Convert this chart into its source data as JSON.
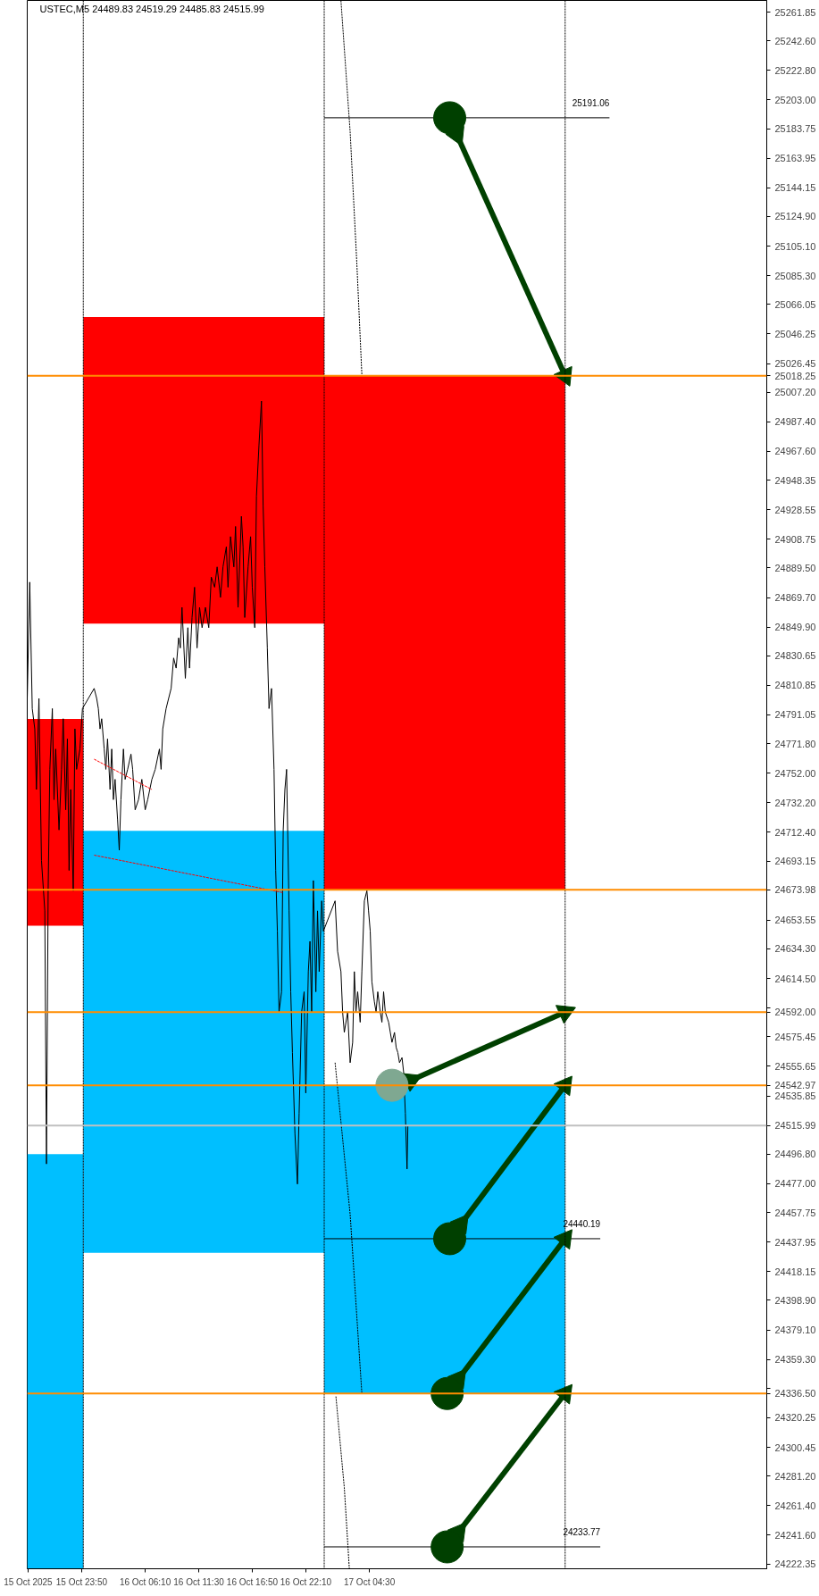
{
  "chart_data": {
    "type": "line",
    "title": "USTEC,M5 24489.83 24519.29 24485.83 24515.99",
    "xlim": [
      "2025-10-15T18:25",
      "2025-10-18T20:05"
    ],
    "ylim": [
      24219.1,
      25269.66
    ],
    "xticks": [
      {
        "value": "2025-10-15T18:30",
        "label": "15 Oct 2025"
      },
      {
        "value": "2025-10-15T23:50",
        "label": "15 Oct 23:50"
      },
      {
        "value": "2025-10-16T06:10",
        "label": "16 Oct 06:10"
      },
      {
        "value": "2025-10-16T11:30",
        "label": "16 Oct 11:30"
      },
      {
        "value": "2025-10-16T16:50",
        "label": "16 Oct 16:50"
      },
      {
        "value": "2025-10-16T22:10",
        "label": "16 Oct 22:10"
      },
      {
        "value": "2025-10-17T04:30",
        "label": "17 Oct 04:30"
      }
    ],
    "yticks": [
      25261.85,
      {
        "value": 25242.6,
        "label": "25242.60"
      },
      {
        "value": 25222.8,
        "label": "25222.80"
      },
      {
        "value": 25203,
        "label": "25203.00"
      },
      25183.75,
      25163.95,
      25144.15,
      {
        "value": 25124.9,
        "label": "25124.90"
      },
      {
        "value": 25105.1,
        "label": "25105.10"
      },
      {
        "value": 25085.3,
        "label": "25085.30"
      },
      25066.05,
      25046.25,
      25026.45,
      {
        "value": 25007.2,
        "label": "25007.20"
      },
      {
        "value": 24987.4,
        "label": "24987.40"
      },
      {
        "value": 24967.6,
        "label": "24967.60"
      },
      24948.35,
      24928.55,
      24908.75,
      {
        "value": 24889.5,
        "label": "24889.50"
      },
      {
        "value": 24869.7,
        "label": "24869.70"
      },
      {
        "value": 24849.9,
        "label": "24849.90"
      },
      24830.65,
      24810.85,
      24791.05,
      {
        "value": 24771.8,
        "label": "24771.80"
      },
      {
        "value": 24752,
        "label": "24752.00"
      },
      {
        "value": 24732.2,
        "label": "24732.20"
      },
      {
        "value": 24712.4,
        "label": "24712.40"
      },
      24693.15,
      24653.55,
      {
        "value": 24634.3,
        "label": "24634.30"
      },
      {
        "value": 24614.5,
        "label": "24614.50"
      },
      {
        "value": 24594.7,
        "label": null
      },
      24575.45,
      24555.65,
      24535.85,
      {
        "value": 24496.8,
        "label": "24496.80"
      },
      {
        "value": 24477,
        "label": "24477.00"
      },
      24457.75,
      24437.95,
      24418.15,
      {
        "value": 24398.9,
        "label": "24398.90"
      },
      {
        "value": 24379.1,
        "label": "24379.10"
      },
      {
        "value": 24359.3,
        "label": "24359.30"
      },
      {
        "value": 24340.05,
        "label": null
      },
      24320.25,
      24300.45,
      {
        "value": 24281.2,
        "label": "24281.20"
      },
      {
        "value": 24261.4,
        "label": "24261.40"
      },
      {
        "value": 24241.6,
        "label": "24241.60"
      },
      24222.35
    ],
    "series": [
      {
        "type": "bar",
        "color": "#ff0000",
        "x": [
          "2025-10-15T21:10",
          "2025-10-16T12:00",
          "2025-10-17T12:00"
        ],
        "base": [
          24649.8,
          24852.2,
          24674.0
        ],
        "values": [
          138.6,
          205.3,
          344.3
        ]
      },
      {
        "type": "bar",
        "color": "#00bfff",
        "x": [
          "2025-10-15T21:10",
          "2025-10-16T12:00",
          "2025-10-17T12:00"
        ],
        "base": [
          24219.1,
          24430.7,
          24336.5
        ],
        "values": [
          277.8,
          282.7,
          206.5
        ]
      },
      {
        "color": "#000000",
        "x": [
          "2025-10-15T18:25",
          "2025-10-15T18:40",
          "2025-10-15T18:55",
          "2025-10-15T19:10",
          "2025-10-15T19:20",
          "2025-10-15T19:35",
          "2025-10-15T19:50",
          "2025-10-15T20:10",
          "2025-10-15T20:20",
          "2025-10-15T20:30",
          "2025-10-15T20:40",
          "2025-10-15T20:55",
          "2025-10-15T21:05",
          "2025-10-15T21:15",
          "2025-10-15T21:35",
          "2025-10-15T21:50",
          "2025-10-15T22:00",
          "2025-10-15T22:15",
          "2025-10-15T22:25",
          "2025-10-15T22:35",
          "2025-10-15T22:45",
          "2025-10-15T23:00",
          "2025-10-15T23:10",
          "2025-10-15T23:20",
          "2025-10-15T23:40",
          "2025-10-15T23:55",
          "2025-10-16T01:05",
          "2025-10-16T01:20",
          "2025-10-16T01:30",
          "2025-10-16T01:40",
          "2025-10-16T01:50",
          "2025-10-16T02:05",
          "2025-10-16T02:15",
          "2025-10-16T02:25",
          "2025-10-16T02:40",
          "2025-10-16T02:50",
          "2025-10-16T03:00",
          "2025-10-16T03:10",
          "2025-10-16T03:25",
          "2025-10-16T03:35",
          "2025-10-16T03:45",
          "2025-10-16T04:00",
          "2025-10-16T04:10",
          "2025-10-16T04:25",
          "2025-10-16T04:45",
          "2025-10-16T04:55",
          "2025-10-16T05:10",
          "2025-10-16T05:30",
          "2025-10-16T05:40",
          "2025-10-16T05:50",
          "2025-10-16T06:10",
          "2025-10-16T06:25",
          "2025-10-16T06:50",
          "2025-10-16T07:10",
          "2025-10-16T07:35",
          "2025-10-16T07:45",
          "2025-10-16T07:55",
          "2025-10-16T08:15",
          "2025-10-16T08:30",
          "2025-10-16T08:45",
          "2025-10-16T09:00",
          "2025-10-16T09:15",
          "2025-10-16T09:30",
          "2025-10-16T09:40",
          "2025-10-16T09:50",
          "2025-10-16T10:10",
          "2025-10-16T10:25",
          "2025-10-16T10:35",
          "2025-10-16T10:50",
          "2025-10-16T11:05",
          "2025-10-16T11:20",
          "2025-10-16T11:35",
          "2025-10-16T11:50",
          "2025-10-16T12:10",
          "2025-10-16T12:30",
          "2025-10-16T12:45",
          "2025-10-16T13:05",
          "2025-10-16T13:20",
          "2025-10-16T13:40",
          "2025-10-16T13:55",
          "2025-10-16T14:15",
          "2025-10-16T14:25",
          "2025-10-16T14:40",
          "2025-10-16T15:00",
          "2025-10-16T15:10",
          "2025-10-16T15:25",
          "2025-10-16T15:45",
          "2025-10-16T15:55",
          "2025-10-16T16:05",
          "2025-10-16T16:25",
          "2025-10-16T16:40",
          "2025-10-16T16:50",
          "2025-10-16T17:05",
          "2025-10-16T17:15",
          "2025-10-16T17:30",
          "2025-10-16T17:45",
          "2025-10-16T17:55",
          "2025-10-16T18:05",
          "2025-10-16T18:20",
          "2025-10-16T18:30",
          "2025-10-16T18:45",
          "2025-10-16T19:00",
          "2025-10-16T19:10",
          "2025-10-16T19:20",
          "2025-10-16T19:30",
          "2025-10-16T19:45",
          "2025-10-16T19:55",
          "2025-10-16T20:05",
          "2025-10-16T20:15",
          "2025-10-16T20:30",
          "2025-10-16T20:40",
          "2025-10-16T20:50",
          "2025-10-16T21:05",
          "2025-10-16T21:20",
          "2025-10-16T21:30",
          "2025-10-16T21:45",
          "2025-10-16T22:00",
          "2025-10-16T22:10",
          "2025-10-16T22:25",
          "2025-10-16T22:35",
          "2025-10-16T22:45",
          "2025-10-16T22:55",
          "2025-10-16T23:10",
          "2025-10-16T23:20",
          "2025-10-16T23:30",
          "2025-10-16T23:45",
          "2025-10-16T23:55",
          "2025-10-17T01:05",
          "2025-10-17T01:20",
          "2025-10-17T01:40",
          "2025-10-17T01:50",
          "2025-10-17T02:00",
          "2025-10-17T02:20",
          "2025-10-17T02:35",
          "2025-10-17T02:50",
          "2025-10-17T03:00",
          "2025-10-17T03:10",
          "2025-10-17T03:20",
          "2025-10-17T03:35",
          "2025-10-17T03:45",
          "2025-10-17T04:00",
          "2025-10-17T04:15",
          "2025-10-17T04:25",
          "2025-10-17T04:35",
          "2025-10-17T04:45",
          "2025-10-17T05:00",
          "2025-10-17T05:10",
          "2025-10-17T05:20",
          "2025-10-17T05:35",
          "2025-10-17T05:45",
          "2025-10-17T05:55",
          "2025-10-17T06:05",
          "2025-10-17T06:25",
          "2025-10-17T06:35",
          "2025-10-17T06:45",
          "2025-10-17T07:00",
          "2025-10-17T07:10",
          "2025-10-17T07:20",
          "2025-10-17T07:30",
          "2025-10-17T07:45",
          "2025-10-17T07:55",
          "2025-10-17T08:05",
          "2025-10-17T08:15",
          "2025-10-17T08:20"
        ],
        "values": [
          24802.1,
          24880.0,
          24795.3,
          24781.7,
          24741.1,
          24802.1,
          24693.6,
          24659.8,
          24490.3,
          24673.3,
          24754.6,
          24795.3,
          24734.3,
          24768.2,
          24714.0,
          24754.6,
          24788.5,
          24727.5,
          24775.0,
          24686.9,
          24741.1,
          24673.3,
          24781.7,
          24754.6,
          24768.2,
          24795.3,
          24808.8,
          24802.1,
          24795.3,
          24781.7,
          24788.5,
          24768.2,
          24754.6,
          24775.0,
          24741.1,
          24768.2,
          24734.3,
          24747.9,
          24720.8,
          24700.4,
          24734.3,
          24768.2,
          24747.9,
          24754.6,
          24764.8,
          24754.6,
          24727.5,
          24734.3,
          24741.1,
          24747.9,
          24727.5,
          24734.3,
          24747.9,
          24754.6,
          24768.2,
          24754.6,
          24781.7,
          24795.3,
          24802.1,
          24808.8,
          24829.2,
          24822.4,
          24842.7,
          24835.9,
          24863.1,
          24815.6,
          24849.5,
          24822.4,
          24856.3,
          24876.6,
          24835.9,
          24863.1,
          24849.5,
          24863.1,
          24849.5,
          24883.4,
          24876.6,
          24890.2,
          24869.8,
          24890.2,
          24903.7,
          24876.6,
          24910.5,
          24890.2,
          24917.3,
          24863.1,
          24924.1,
          24903.7,
          24856.3,
          24890.2,
          24910.5,
          24876.6,
          24849.5,
          24937.6,
          24971.5,
          25001.3,
          24930.8,
          24890.2,
          24835.9,
          24795.3,
          24808.8,
          24754.6,
          24686.9,
          24646.2,
          24592.0,
          24605.6,
          24714.0,
          24741.1,
          24754.6,
          24659.8,
          24605.6,
          24564.9,
          24510.7,
          24476.8,
          24524.2,
          24592.0,
          24605.6,
          24537.8,
          24619.1,
          24639.4,
          24592.0,
          24680.1,
          24605.6,
          24659.8,
          24619.1,
          24666.5,
          24646.2,
          24666.5,
          24632.7,
          24619.1,
          24592.0,
          24578.4,
          24592.0,
          24558.1,
          24571.7,
          24619.1,
          24592.0,
          24605.6,
          24585.2,
          24619.1,
          24666.5,
          24673.3,
          24659.8,
          24646.2,
          24612.3,
          24598.8,
          24592.0,
          24605.6,
          24592.0,
          24585.2,
          24605.6,
          24592.0,
          24585.2,
          24578.4,
          24571.7,
          24578.4,
          24568.3,
          24564.9,
          24558.1,
          24561.5,
          24551.4,
          24524.2,
          24486.9,
          24515.99
        ]
      },
      {
        "color": "#000000",
        "x": [
          "2025-10-17T00:00",
          "2025-10-18T04:25"
        ],
        "values": [
          25191.06,
          25191.06
        ]
      },
      {
        "color": "#000000",
        "x": [
          "2025-10-17T00:00",
          "2025-10-18T03:30"
        ],
        "values": [
          24440.19,
          24440.19
        ]
      },
      {
        "color": "#000000",
        "x": [
          "2025-10-17T00:00",
          "2025-10-18T03:30"
        ],
        "values": [
          24233.77,
          24233.77
        ]
      },
      {
        "color": "#000000",
        "line_style": "dotted",
        "x": [
          "2025-10-17T01:40",
          "2025-10-17T02:35",
          "2025-10-17T03:15",
          "2025-10-17T03:45"
        ],
        "values": [
          25269.6,
          25181.6,
          25093.5,
          25018.9
        ]
      },
      {
        "color": "#000000",
        "line_style": "dotted",
        "x": [
          "2025-10-17T01:05",
          "2025-10-17T02:35",
          "2025-10-17T03:45"
        ],
        "values": [
          24558.1,
          24456.5,
          24336.5
        ]
      },
      {
        "color": "#000000",
        "line_style": "dotted",
        "x": [
          "2025-10-17T01:10",
          "2025-10-17T02:00",
          "2025-10-17T02:30"
        ],
        "values": [
          24334.5,
          24273.5,
          24219.3
        ]
      },
      {
        "color": "#ff0000",
        "line_style": "dashed",
        "x": [
          "2025-10-16T01:05",
          "2025-10-16T19:55"
        ],
        "values": [
          24697.1,
          24672.0
        ]
      },
      {
        "color": "#ff0000",
        "line_style": "dashed",
        "x": [
          "2025-10-16T01:05",
          "2025-10-16T06:50"
        ],
        "values": [
          24761.4,
          24741.1
        ]
      },
      {
        "color": "#004000",
        "marker": "triangle",
        "x": [
          "2025-10-17T13:15",
          "2025-10-18T00:00"
        ],
        "values": [
          25179.2,
          25018.25
        ]
      },
      {
        "color": "#004000",
        "marker": "triangle",
        "x": [
          "2025-10-17T13:40",
          "2025-10-18T00:00"
        ],
        "values": [
          24450.4,
          24542.97
        ]
      },
      {
        "color": "#004000",
        "marker": "triangle",
        "x": [
          "2025-10-17T13:25",
          "2025-10-18T00:00"
        ],
        "values": [
          24346.7,
          24440.19
        ]
      },
      {
        "color": "#004000",
        "marker": "triangle",
        "x": [
          "2025-10-17T13:25",
          "2025-10-18T00:00"
        ],
        "values": [
          24244.0,
          24336.5
        ]
      },
      {
        "color": "#004000",
        "marker": "triangle",
        "x": [
          "2025-10-17T08:40",
          "2025-10-18T00:00"
        ],
        "values": [
          24546.4,
          24592.0
        ]
      },
      {
        "type": "scatter",
        "color": "#004000",
        "marker": "circle",
        "x": [
          "2025-10-17T12:30",
          "2025-10-17T12:30",
          "2025-10-17T12:15",
          "2025-10-17T12:15"
        ],
        "values": [
          25191.06,
          24440.19,
          24336.5,
          24233.77
        ]
      },
      {
        "type": "scatter",
        "color": "#7fa891",
        "marker": "circle",
        "x": [
          "2025-10-17T06:45"
        ],
        "values": [
          24542.97
        ]
      }
    ],
    "ref_lines": [
      {
        "axis": "x",
        "value": "2025-10-16T00:00",
        "color": "#000000",
        "line_style": "dotted"
      },
      {
        "axis": "x",
        "value": "2025-10-17T00:00",
        "color": "#000000",
        "line_style": "dotted"
      },
      {
        "axis": "x",
        "value": "2025-10-18T00:00",
        "color": "#000000",
        "line_style": "dotted"
      },
      {
        "axis": "y",
        "value": 25018.25,
        "label": "25018.25",
        "color": "#ff8c00"
      },
      {
        "axis": "y",
        "value": 24673.98,
        "label": "24673.98",
        "color": "#ff8c00"
      },
      {
        "axis": "y",
        "value": 24592.0,
        "label": "24592.00",
        "color": "#ff8c00"
      },
      {
        "axis": "y",
        "value": 24542.97,
        "label": "24542.97",
        "color": "#ff8c00"
      },
      {
        "axis": "y",
        "value": 24515.99,
        "label": "24515.99",
        "color": "#c0c0c0"
      },
      {
        "axis": "y",
        "value": 24336.5,
        "label": "24336.50",
        "color": "#ff8c00"
      }
    ],
    "annotations": [
      {
        "text": "25191.06",
        "x": "2025-10-18T04:25",
        "y": 25191.06
      },
      {
        "text": "24440.19",
        "x": "2025-10-18T03:30",
        "y": 24440.19
      },
      {
        "text": "24233.77",
        "x": "2025-10-18T03:30",
        "y": 24233.77
      }
    ]
  }
}
